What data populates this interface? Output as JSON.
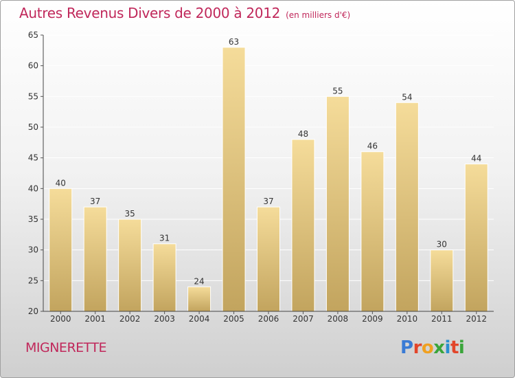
{
  "title": "Autres Revenus Divers de 2000 à 2012",
  "unit": "(en milliers d'€)",
  "location": "MIGNERETTE",
  "brand": "Proxiti",
  "brand_colors": [
    "#3a7bd5",
    "#e2452a",
    "#f0a020",
    "#3aa53a",
    "#2a8fd0",
    "#e2452a",
    "#3aa53a"
  ],
  "colors": {
    "title": "#c0275a",
    "bar_top": "#f5dc9a",
    "bar_bottom": "#c2a45e",
    "grid": "#ffffff"
  },
  "chart_data": {
    "type": "bar",
    "categories": [
      "2000",
      "2001",
      "2002",
      "2003",
      "2004",
      "2005",
      "2006",
      "2007",
      "2008",
      "2009",
      "2010",
      "2011",
      "2012"
    ],
    "values": [
      40,
      37,
      35,
      31,
      24,
      63,
      37,
      48,
      55,
      46,
      54,
      30,
      44
    ],
    "ylim": [
      20,
      65
    ],
    "yticks": [
      20,
      25,
      30,
      35,
      40,
      45,
      50,
      55,
      60,
      65
    ],
    "grid": true,
    "xlabel": "",
    "ylabel": ""
  }
}
